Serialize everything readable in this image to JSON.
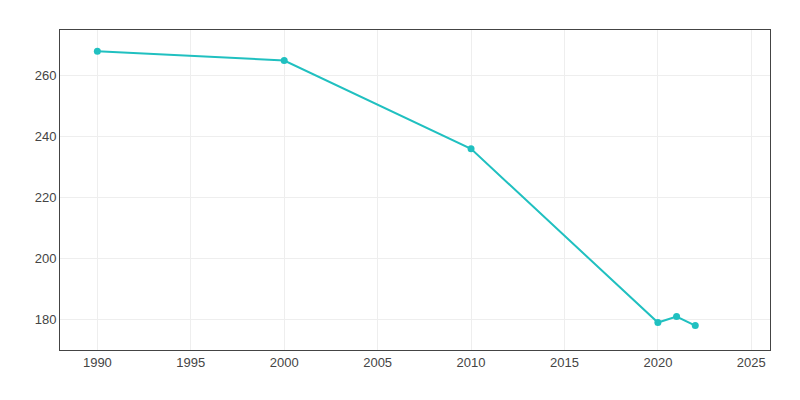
{
  "chart_data": {
    "type": "line",
    "x": [
      1990,
      2000,
      2010,
      2020,
      2021,
      2022
    ],
    "values": [
      268,
      265,
      236,
      179,
      181,
      178
    ],
    "color": "#20c0c0",
    "marker": "circle",
    "line_style": "solid",
    "xlim": [
      1988,
      2026
    ],
    "ylim": [
      170,
      275
    ],
    "xticks": [
      1990,
      1995,
      2000,
      2005,
      2010,
      2015,
      2020,
      2025
    ],
    "yticks": [
      180,
      200,
      220,
      240,
      260
    ],
    "grid": true
  }
}
